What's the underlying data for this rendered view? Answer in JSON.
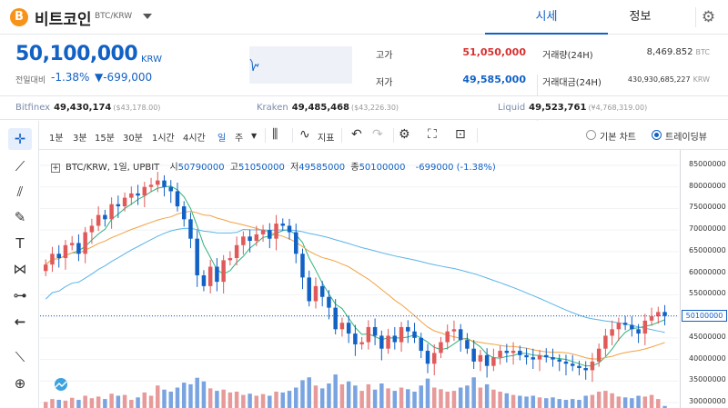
{
  "header": {
    "coin_icon": "bitcoin-icon",
    "coin_symbol": "B",
    "coin_name": "비트코인",
    "pair": "BTC/KRW",
    "tabs": [
      {
        "label": "시세",
        "active": true
      },
      {
        "label": "정보",
        "active": false
      }
    ]
  },
  "summary": {
    "price": "50,100,000",
    "unit": "KRW",
    "change_label": "전일대비",
    "change_rate": "-1.38%",
    "change_amount": "▼-699,000",
    "high_label": "고가",
    "high": "51,050,000",
    "low_label": "저가",
    "low": "49,585,000",
    "volume_label": "거래량(24H)",
    "volume": "8,469.852",
    "volume_unit": "BTC",
    "turnover_label": "거래대금(24H)",
    "turnover": "430,930,685,227",
    "turnover_unit": "KRW"
  },
  "exchanges": [
    {
      "name": "Bitfinex",
      "price": "49,430,174",
      "usd": "($43,178.00)"
    },
    {
      "name": "Kraken",
      "price": "49,485,468",
      "usd": "($43,226.30)"
    },
    {
      "name": "Liquid",
      "price": "49,523,761",
      "usd": "(¥4,768,319.00)"
    }
  ],
  "toolbar": {
    "intervals": [
      {
        "label": "1분",
        "selected": false
      },
      {
        "label": "3분",
        "selected": false
      },
      {
        "label": "15분",
        "selected": false
      },
      {
        "label": "30분",
        "selected": false
      },
      {
        "label": "1시간",
        "selected": false
      },
      {
        "label": "4시간",
        "selected": false
      },
      {
        "label": "일",
        "selected": true
      },
      {
        "label": "주",
        "selected": false
      }
    ],
    "indicator_label": "지표",
    "view_basic": "기본 차트",
    "view_tradingview": "트레이딩뷰"
  },
  "legend": {
    "title": "BTC/KRW, 1일, UPBIT",
    "open_k": "시",
    "open": "50790000",
    "high_k": "고",
    "high": "51050000",
    "low_k": "저",
    "low": "49585000",
    "close_k": "종",
    "close": "50100000",
    "change": "-699000 (-1.38%)"
  },
  "colors": {
    "up": "#e15a5a",
    "down": "#1261c4",
    "ma5": "#2db37c",
    "ma20": "#f1a243",
    "ma60": "#5ab4e8"
  },
  "chart_data": {
    "type": "candlestick",
    "y_ticks": [
      "85000000",
      "80000000",
      "75000000",
      "70000000",
      "65000000",
      "60000000",
      "55000000",
      "50000000",
      "45000000",
      "40000000",
      "35000000",
      "30000000"
    ],
    "current_price_tag": "50100000",
    "ylim": [
      30000000,
      85000000
    ],
    "close": [
      62000000,
      64500000,
      63500000,
      66500000,
      67000000,
      64500000,
      69500000,
      71000000,
      73500000,
      72500000,
      76000000,
      75500000,
      77500000,
      78500000,
      78000000,
      80000000,
      80500000,
      81500000,
      80000000,
      79000000,
      75500000,
      72500000,
      68000000,
      59500000,
      57000000,
      61500000,
      58000000,
      63000000,
      63500000,
      66500000,
      68500000,
      67500000,
      69000000,
      70000000,
      68000000,
      71500000,
      71000000,
      69500000,
      64500000,
      59000000,
      53500000,
      57000000,
      54500000,
      52000000,
      47000000,
      48500000,
      46000000,
      43500000,
      44000000,
      47500000,
      45500000,
      42500000,
      45500000,
      44000000,
      47500000,
      46500000,
      45000000,
      42000000,
      39000000,
      41500000,
      44000000,
      46500000,
      47000000,
      44500000,
      42500000,
      39500000,
      41000000,
      38500000,
      40500000,
      42000000,
      41500000,
      42000000,
      41000000,
      40500000,
      40000000,
      41000000,
      40500000,
      40000000,
      39500000,
      39000000,
      38500000,
      38000000,
      37500000,
      39500000,
      42500000,
      45500000,
      47000000,
      48500000,
      48000000,
      47000000,
      46000000,
      49000000,
      50000000,
      51000000,
      50100000
    ],
    "volume": [
      0.15,
      0.22,
      0.2,
      0.18,
      0.25,
      0.2,
      0.3,
      0.24,
      0.28,
      0.22,
      0.35,
      0.3,
      0.32,
      0.2,
      0.26,
      0.38,
      0.3,
      0.55,
      0.45,
      0.4,
      0.5,
      0.62,
      0.58,
      0.74,
      0.65,
      0.48,
      0.42,
      0.45,
      0.38,
      0.4,
      0.32,
      0.35,
      0.3,
      0.34,
      0.3,
      0.4,
      0.38,
      0.42,
      0.5,
      0.68,
      0.75,
      0.55,
      0.48,
      0.6,
      0.82,
      0.58,
      0.65,
      0.55,
      0.42,
      0.58,
      0.45,
      0.6,
      0.48,
      0.42,
      0.5,
      0.46,
      0.4,
      0.55,
      0.72,
      0.5,
      0.46,
      0.4,
      0.42,
      0.5,
      0.55,
      0.75,
      0.5,
      0.58,
      0.45,
      0.4,
      0.36,
      0.32,
      0.3,
      0.28,
      0.3,
      0.26,
      0.24,
      0.26,
      0.22,
      0.2,
      0.22,
      0.2,
      0.3,
      0.32,
      0.4,
      0.42,
      0.36,
      0.28,
      0.26,
      0.24,
      0.3,
      0.28,
      0.32,
      0.22,
      0.05
    ]
  }
}
